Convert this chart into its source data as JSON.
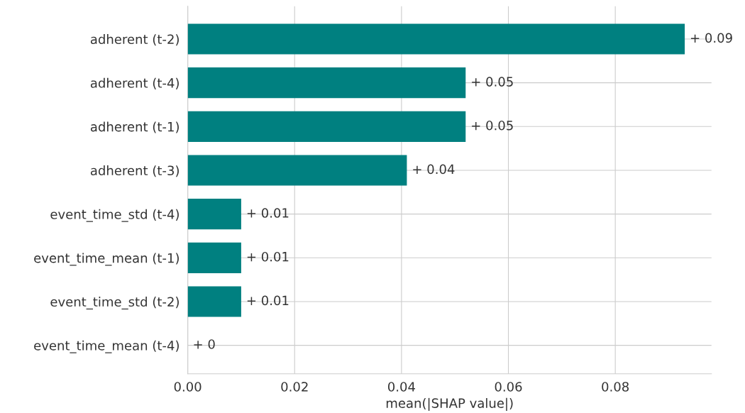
{
  "chart_data": {
    "type": "bar",
    "orientation": "horizontal",
    "xlabel": "mean(|SHAP value|)",
    "categories": [
      "adherent (t-2)",
      "adherent (t-4)",
      "adherent (t-1)",
      "adherent (t-3)",
      "event_time_std (t-4)",
      "event_time_mean (t-1)",
      "event_time_std (t-2)",
      "event_time_mean (t-4)"
    ],
    "values": [
      0.093,
      0.052,
      0.052,
      0.041,
      0.01,
      0.01,
      0.01,
      0.0
    ],
    "value_labels": [
      "+ 0.09",
      "+ 0.05",
      "+ 0.05",
      "+ 0.04",
      "+ 0.01",
      "+ 0.01",
      "+ 0.01",
      "+ 0"
    ],
    "color": "#008080",
    "xlim": [
      0,
      0.098
    ],
    "xticks": [
      {
        "value": 0,
        "label": "0.00"
      },
      {
        "value": 0.02,
        "label": "0.02"
      },
      {
        "value": 0.04,
        "label": "0.04"
      },
      {
        "value": 0.06,
        "label": "0.06"
      },
      {
        "value": 0.08,
        "label": "0.08"
      }
    ],
    "grid": true
  }
}
